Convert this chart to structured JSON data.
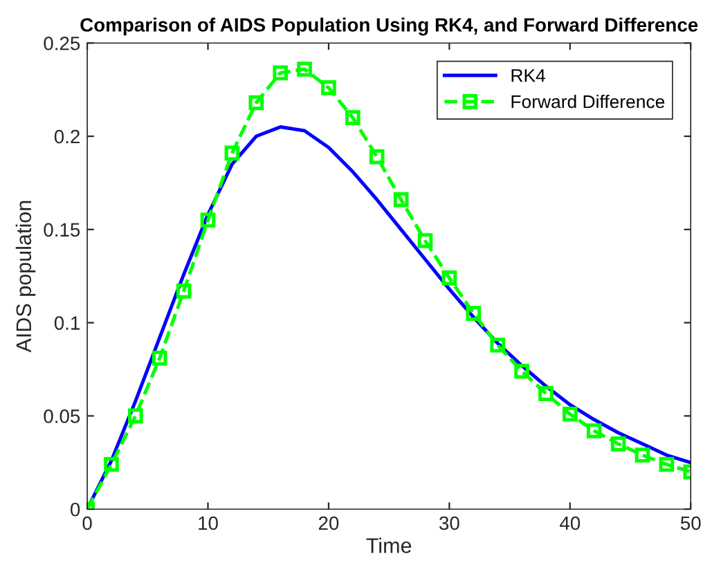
{
  "chart_data": {
    "type": "line",
    "title": "Comparison of AIDS Population Using RK4, and Forward Difference",
    "xlabel": "Time",
    "ylabel": "AIDS population",
    "xlim": [
      0,
      50
    ],
    "xticks": [
      0,
      10,
      20,
      30,
      40,
      50
    ],
    "ylim": [
      0,
      0.25
    ],
    "yticks": [
      0,
      0.05,
      0.1,
      0.15,
      0.2,
      0.25
    ],
    "grid": false,
    "legend": "top right",
    "series": [
      {
        "name": "RK4",
        "color": "#0000ff",
        "marker": "none",
        "line_style": "solid",
        "x": [
          0,
          2,
          4,
          6,
          8,
          10,
          12,
          14,
          16,
          18,
          20,
          22,
          24,
          26,
          28,
          30,
          32,
          34,
          36,
          38,
          40,
          42,
          44,
          46,
          48,
          50
        ],
        "values": [
          0,
          0.026,
          0.058,
          0.092,
          0.126,
          0.158,
          0.185,
          0.2,
          0.205,
          0.203,
          0.194,
          0.181,
          0.166,
          0.15,
          0.134,
          0.118,
          0.103,
          0.089,
          0.077,
          0.066,
          0.056,
          0.048,
          0.041,
          0.035,
          0.029,
          0.025
        ]
      },
      {
        "name": "Forward Difference",
        "color": "#00ff00",
        "marker": "square",
        "line_style": "dashed",
        "x": [
          0,
          2,
          4,
          6,
          8,
          10,
          12,
          14,
          16,
          18,
          20,
          22,
          24,
          26,
          28,
          30,
          32,
          34,
          36,
          38,
          40,
          42,
          44,
          46,
          48,
          50
        ],
        "values": [
          0,
          0.024,
          0.05,
          0.081,
          0.117,
          0.155,
          0.191,
          0.218,
          0.234,
          0.236,
          0.226,
          0.21,
          0.189,
          0.166,
          0.144,
          0.124,
          0.105,
          0.088,
          0.074,
          0.062,
          0.051,
          0.042,
          0.035,
          0.029,
          0.024,
          0.02
        ]
      }
    ]
  }
}
